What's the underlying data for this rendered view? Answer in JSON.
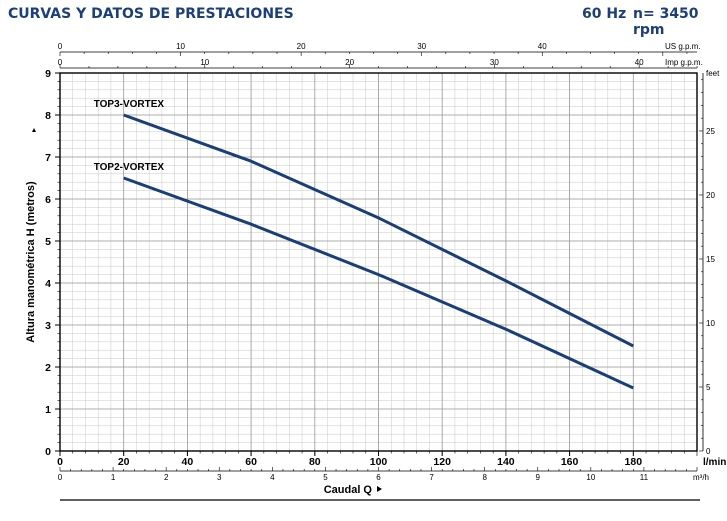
{
  "header": {
    "title": "CURVAS Y DATOS DE PRESTACIONES",
    "frequency": "60 Hz",
    "speed": "n= 3450 rpm"
  },
  "colors": {
    "curve": "#1a3f78",
    "header": "#1c3f7a",
    "grid": "#c8c8c8",
    "axis": "#000000"
  },
  "chart_data": {
    "type": "line",
    "xlabel": "Caudal Q",
    "ylabel": "Altura manométrica H (metros)",
    "x_unit": "l/min",
    "xlim": [
      0,
      200
    ],
    "ylim": [
      0,
      9
    ],
    "grid": true,
    "series": [
      {
        "name": "TOP3-VORTEX",
        "x": [
          20,
          60,
          100,
          140,
          180
        ],
        "y": [
          8.0,
          6.9,
          5.55,
          4.05,
          2.5
        ]
      },
      {
        "name": "TOP2-VORTEX",
        "x": [
          20,
          60,
          100,
          140,
          180
        ],
        "y": [
          6.5,
          5.4,
          4.2,
          2.9,
          1.5
        ]
      }
    ],
    "x_ticks": [
      "0",
      "20",
      "40",
      "60",
      "80",
      "100",
      "120",
      "140",
      "160",
      "180"
    ],
    "y_ticks": [
      "0",
      "1",
      "2",
      "3",
      "4",
      "5",
      "6",
      "7",
      "8",
      "9"
    ],
    "secondary_axes": {
      "us_gpm": {
        "label": "US g.p.m.",
        "ticks": [
          "0",
          "10",
          "20",
          "30",
          "40"
        ]
      },
      "imp_gpm": {
        "label": "Imp g.p.m.",
        "ticks": [
          "0",
          "10",
          "20",
          "30",
          "40"
        ]
      },
      "m3h": {
        "label": "m³/h",
        "ticks": [
          "0",
          "1",
          "2",
          "3",
          "4",
          "5",
          "6",
          "7",
          "8",
          "9",
          "10",
          "11"
        ]
      },
      "feet": {
        "label": "feet",
        "ticks": [
          "0",
          "5",
          "10",
          "15",
          "20",
          "25"
        ]
      }
    }
  }
}
